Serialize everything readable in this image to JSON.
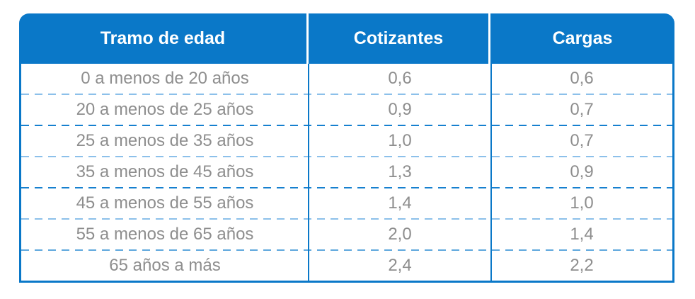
{
  "chart_data": {
    "type": "table",
    "columns": [
      "Tramo de edad",
      "Cotizantes",
      "Cargas"
    ],
    "rows": [
      [
        "0 a menos de 20 años",
        "0,6",
        "0,6"
      ],
      [
        "20 a menos de 25 años",
        "0,9",
        "0,7"
      ],
      [
        "25 a menos de 35 años",
        "1,0",
        "0,7"
      ],
      [
        "35 a menos de 45 años",
        "1,3",
        "0,9"
      ],
      [
        "45 a menos de 55 años",
        "1,4",
        "1,0"
      ],
      [
        "55 a menos de 65 años",
        "2,0",
        "1,4"
      ],
      [
        "65 años a más",
        "2,4",
        "2,2"
      ]
    ],
    "layout": "3-column table, blue header with rounded top corners, dashed row separators, grid off elsewhere"
  },
  "table": {
    "headers": [
      {
        "label": "Tramo de edad"
      },
      {
        "label": "Cotizantes"
      },
      {
        "label": "Cargas"
      }
    ],
    "rows": [
      {
        "tramo": "0 a menos de 20 años",
        "cotizantes": "0,6",
        "cargas": "0,6"
      },
      {
        "tramo": "20 a menos de 25 años",
        "cotizantes": "0,9",
        "cargas": "0,7"
      },
      {
        "tramo": "25 a menos de 35 años",
        "cotizantes": "1,0",
        "cargas": "0,7"
      },
      {
        "tramo": "35 a menos de 45 años",
        "cotizantes": "1,3",
        "cargas": "0,9"
      },
      {
        "tramo": "45 a menos de 55 años",
        "cotizantes": "1,4",
        "cargas": "1,0"
      },
      {
        "tramo": "55 a menos de 65 años",
        "cotizantes": "2,0",
        "cargas": "1,4"
      },
      {
        "tramo": "65 años a más",
        "cotizantes": "2,4",
        "cargas": "2,2"
      }
    ],
    "separator_colors": [
      "#8cc0ea",
      "#1680cf",
      "#8cc0ea",
      "#1680cf",
      "#8cc0ea",
      "#5fa8dd"
    ],
    "colors": {
      "header_bg": "#0a78c8",
      "header_text": "#ffffff",
      "border": "#0a78c8",
      "body_text": "#8e8e8e",
      "background": "#ffffff"
    }
  }
}
